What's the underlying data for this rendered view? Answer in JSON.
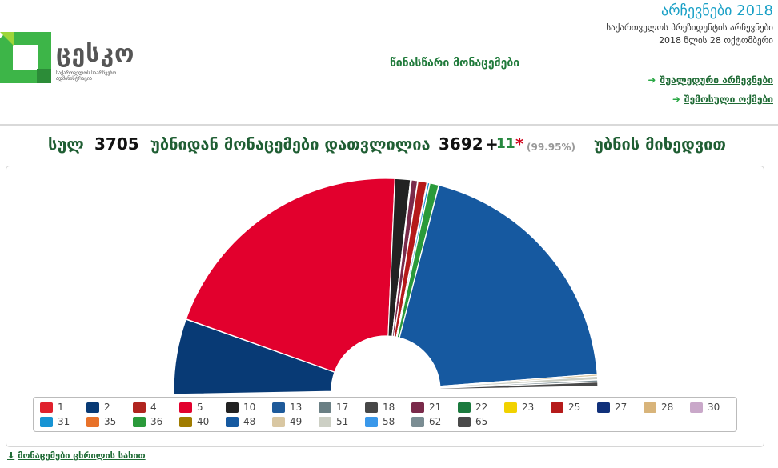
{
  "header": {
    "logo_name": "ცესკო",
    "logo_subtitle": "საქართველოს საარჩევნო ადმინისტრაცია",
    "elections_title": "არჩევნები 2018",
    "elections_subtitle": "საქართველოს პრეზიდენტის არჩევნები",
    "elections_date": "2018 წლის 28 ოქტომბერი",
    "prelim_label": "წინასწარი მონაცემები",
    "links": [
      {
        "label": "შუალედური არჩევნები",
        "icon": "arrow-right-icon"
      },
      {
        "label": "შემოსული ოქმები",
        "icon": "arrow-right-icon"
      }
    ]
  },
  "summary": {
    "prefix": "სულ",
    "total_precincts": "3705",
    "middle": "უბნიდან მონაცემები დათვლილია",
    "counted": "3692",
    "plus_extra": "+",
    "extra": "11",
    "star": "*",
    "percent": "(99.95%)",
    "suffix": "უბნის მიხედვით"
  },
  "chart_data": {
    "type": "pie",
    "subtype": "semicircle-donut",
    "series": [
      {
        "name": "1",
        "value": 0.05,
        "color": "#e0212d"
      },
      {
        "name": "2",
        "value": 10.97,
        "color": "#083a75"
      },
      {
        "name": "4",
        "value": 0.05,
        "color": "#b0241f"
      },
      {
        "name": "5",
        "value": 38.64,
        "color": "#e2002d"
      },
      {
        "name": "10",
        "value": 2.26,
        "color": "#222222"
      },
      {
        "name": "13",
        "value": 0.03,
        "color": "#1e5a9a"
      },
      {
        "name": "17",
        "value": 0.05,
        "color": "#6a7f84"
      },
      {
        "name": "18",
        "value": 0.05,
        "color": "#474747"
      },
      {
        "name": "21",
        "value": 0.9,
        "color": "#7a2a4a"
      },
      {
        "name": "22",
        "value": 0.03,
        "color": "#1b7a3e"
      },
      {
        "name": "23",
        "value": 0.03,
        "color": "#f1d200"
      },
      {
        "name": "25",
        "value": 1.3,
        "color": "#b51a1a"
      },
      {
        "name": "27",
        "value": 0.03,
        "color": "#10307a"
      },
      {
        "name": "28",
        "value": 0.03,
        "color": "#d8b47a"
      },
      {
        "name": "30",
        "value": 0.05,
        "color": "#c9a8c9"
      },
      {
        "name": "31",
        "value": 0.3,
        "color": "#1794d4"
      },
      {
        "name": "35",
        "value": 0.03,
        "color": "#e8722a"
      },
      {
        "name": "36",
        "value": 1.3,
        "color": "#2a9a3a"
      },
      {
        "name": "40",
        "value": 0.03,
        "color": "#a07c00"
      },
      {
        "name": "48",
        "value": 37.74,
        "color": "#1659a0"
      },
      {
        "name": "49",
        "value": 0.3,
        "color": "#d9c7a2"
      },
      {
        "name": "51",
        "value": 0.5,
        "color": "#cccfc4"
      },
      {
        "name": "58",
        "value": 0.03,
        "color": "#3a98ea"
      },
      {
        "name": "62",
        "value": 0.3,
        "color": "#7b8d93"
      },
      {
        "name": "65",
        "value": 0.6,
        "color": "#4a4a4a"
      }
    ]
  },
  "footer": {
    "table_link": "მონაცემები ცხრილის სახით",
    "table_link_icon": "arrow-down-icon"
  }
}
